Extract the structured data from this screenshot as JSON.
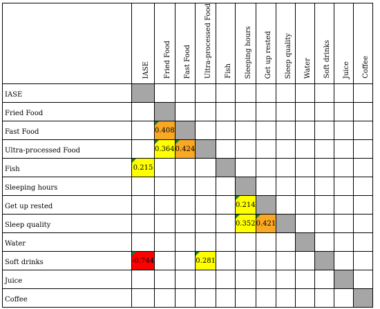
{
  "matrix": {
    "labels": [
      "IASE",
      "Fried Food",
      "Fast Food",
      "Ultra-processed Food",
      "Fish",
      "Sleeping hours",
      "Get up rested",
      "Sleep quality",
      "Water",
      "Soft drinks",
      "Juice",
      "Coffee"
    ],
    "cells": [
      {
        "row": 2,
        "col": 1,
        "value": "0.408",
        "color": "#f9a825"
      },
      {
        "row": 3,
        "col": 1,
        "value": "0.364",
        "color": "#ffff00"
      },
      {
        "row": 3,
        "col": 2,
        "value": "0.424",
        "color": "#f9a825"
      },
      {
        "row": 4,
        "col": 0,
        "value": "0.215",
        "color": "#ffff00"
      },
      {
        "row": 6,
        "col": 5,
        "value": "0.214",
        "color": "#ffff00"
      },
      {
        "row": 7,
        "col": 5,
        "value": "0.352",
        "color": "#ffff00"
      },
      {
        "row": 7,
        "col": 6,
        "value": "0.421",
        "color": "#f9a825"
      },
      {
        "row": 9,
        "col": 0,
        "value": "-0.744",
        "color": "#ff0000"
      },
      {
        "row": 9,
        "col": 3,
        "value": "0.281",
        "color": "#ffff00"
      }
    ],
    "diagonal_color": "#a6a6a6",
    "indicator_color": "#1d7a2b"
  }
}
